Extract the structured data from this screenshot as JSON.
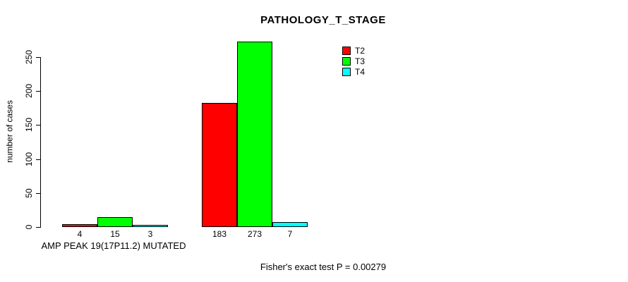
{
  "chart_data": {
    "type": "bar",
    "title": "PATHOLOGY_T_STAGE",
    "ylabel": "number of cases",
    "xlabel": "",
    "categories": [
      "AMP PEAK 19(17P11.2) MUTATED",
      ""
    ],
    "series": [
      {
        "name": "T2",
        "color": "#FF0000",
        "values": [
          4,
          183
        ]
      },
      {
        "name": "T3",
        "color": "#00FF00",
        "values": [
          15,
          273
        ]
      },
      {
        "name": "T4",
        "color": "#00FFFF",
        "values": [
          3,
          7
        ]
      }
    ],
    "yticks": [
      0,
      50,
      100,
      150,
      200,
      250
    ],
    "ylim": [
      0,
      280
    ],
    "grid": false,
    "bar_border_color": "#000000",
    "legend_position": "top-right",
    "legend_entries": [
      "T2",
      "T3",
      "T4"
    ],
    "bar_value_labels": [
      [
        4,
        15,
        3
      ],
      [
        183,
        273,
        7
      ]
    ],
    "annotation": "Fisher's exact test P = 0.00279"
  }
}
